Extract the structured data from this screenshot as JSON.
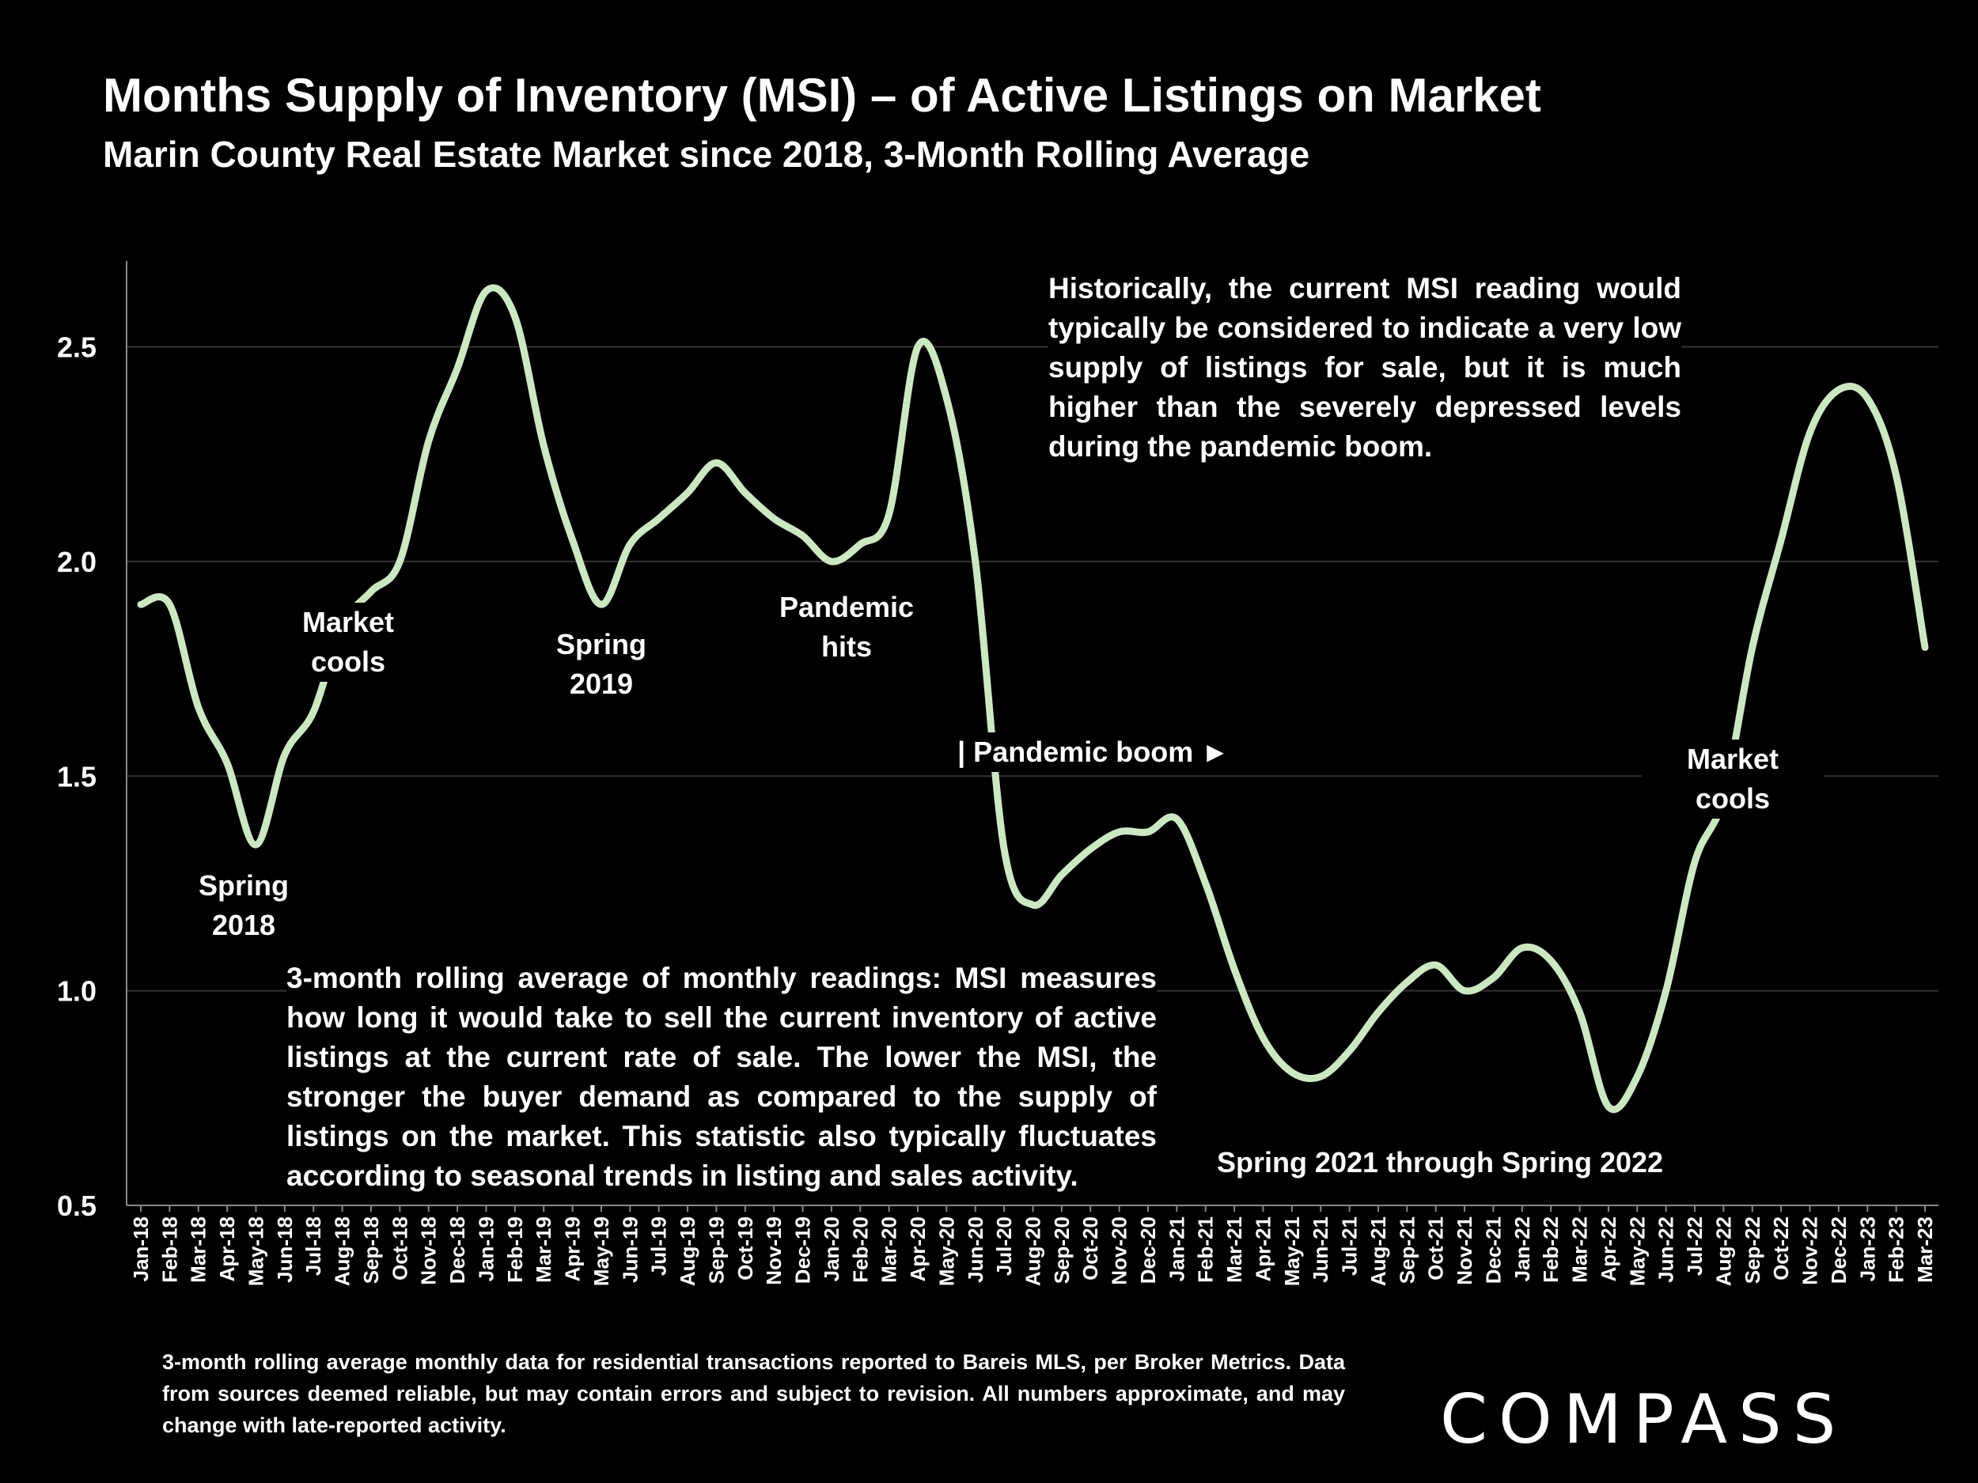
{
  "header": {
    "title": "Months Supply of Inventory (MSI) – of Active Listings on Market",
    "subtitle": "Marin County Real Estate Market since 2018, 3-Month Rolling Average"
  },
  "colors": {
    "line": "#cce8c2",
    "background": "#000000",
    "text": "#ffffff",
    "grid": "#333333"
  },
  "chart_data": {
    "type": "line",
    "title": "Months Supply of Inventory (MSI) – of Active Listings on Market",
    "subtitle": "Marin County Real Estate Market since 2018, 3-Month Rolling Average",
    "xlabel": "",
    "ylabel": "",
    "ylim": [
      0.5,
      2.7
    ],
    "yticks": [
      "0.5",
      "1.0",
      "1.5",
      "2.0",
      "2.5"
    ],
    "grid": true,
    "categories": [
      "Jan-18",
      "Feb-18",
      "Mar-18",
      "Apr-18",
      "May-18",
      "Jun-18",
      "Jul-18",
      "Aug-18",
      "Sep-18",
      "Oct-18",
      "Nov-18",
      "Dec-18",
      "Jan-19",
      "Feb-19",
      "Mar-19",
      "Apr-19",
      "May-19",
      "Jun-19",
      "Jul-19",
      "Aug-19",
      "Sep-19",
      "Oct-19",
      "Nov-19",
      "Dec-19",
      "Jan-20",
      "Feb-20",
      "Mar-20",
      "Apr-20",
      "May-20",
      "Jun-20",
      "Jul-20",
      "Aug-20",
      "Sep-20",
      "Oct-20",
      "Nov-20",
      "Dec-20",
      "Jan-21",
      "Feb-21",
      "Mar-21",
      "Apr-21",
      "May-21",
      "Jun-21",
      "Jul-21",
      "Aug-21",
      "Sep-21",
      "Oct-21",
      "Nov-21",
      "Dec-21",
      "Jan-22",
      "Feb-22",
      "Mar-22",
      "Apr-22",
      "May-22",
      "Jun-22",
      "Jul-22",
      "Aug-22",
      "Sep-22",
      "Oct-22",
      "Nov-22",
      "Dec-22",
      "Jan-23",
      "Feb-23",
      "Mar-23"
    ],
    "series": [
      {
        "values": [
          1.9,
          1.9,
          1.66,
          1.53,
          1.34,
          1.55,
          1.65,
          1.85,
          1.93,
          2.0,
          2.28,
          2.45,
          2.63,
          2.57,
          2.27,
          2.05,
          1.9,
          2.04,
          2.1,
          2.16,
          2.23,
          2.16,
          2.1,
          2.06,
          2.0,
          2.04,
          2.11,
          2.5,
          2.38,
          2.0,
          1.33,
          1.2,
          1.27,
          1.33,
          1.37,
          1.37,
          1.4,
          1.25,
          1.05,
          0.89,
          0.81,
          0.8,
          0.86,
          0.95,
          1.02,
          1.06,
          1.0,
          1.03,
          1.1,
          1.07,
          0.95,
          0.73,
          0.8,
          1.0,
          1.3,
          1.45,
          1.8,
          2.05,
          2.3,
          2.4,
          2.38,
          2.2,
          1.8
        ]
      }
    ],
    "annotations": [
      {
        "text": [
          "Spring",
          "2018"
        ]
      },
      {
        "text": [
          "Market",
          "cools"
        ]
      },
      {
        "text": [
          "Spring",
          "2019"
        ]
      },
      {
        "text": [
          "Pandemic",
          "hits"
        ]
      },
      {
        "text": [
          "| Pandemic boom ►"
        ]
      },
      {
        "text": [
          "Spring 2021 through Spring 2022"
        ]
      },
      {
        "text": [
          "Market",
          "cools"
        ]
      }
    ]
  },
  "notes": {
    "top": "Historically, the current MSI reading would typically be considered to indicate a very low supply of listings for sale, but it is much higher than the severely depressed levels during the pandemic boom.",
    "bottom": "3-month rolling average of monthly readings: MSI measures how long it would take to sell the current inventory of active listings at the current rate of sale. The lower the MSI, the stronger the buyer demand as compared to the supply of listings on the market. This statistic also typically fluctuates according to seasonal trends in listing and sales activity."
  },
  "footer": {
    "footnote": "3-month rolling average monthly data for residential transactions reported to Bareis MLS, per Broker Metrics. Data from sources deemed reliable, but may contain errors and subject to revision. All numbers approximate, and may change with late-reported activity.",
    "logo": "COMPASS"
  }
}
